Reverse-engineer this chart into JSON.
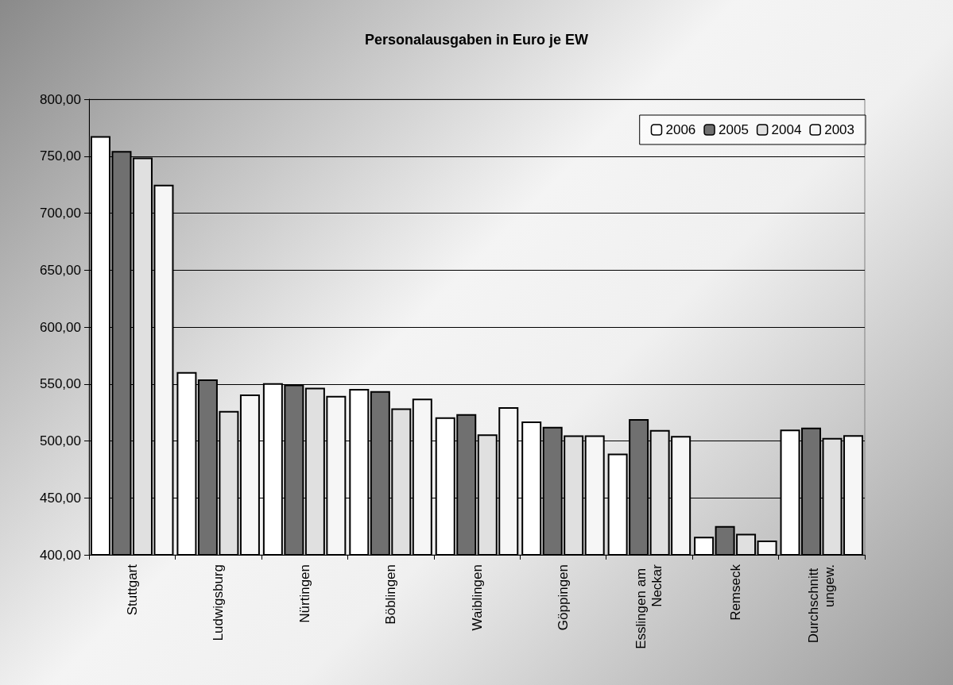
{
  "chart_data": {
    "type": "bar",
    "title": "Personalausgaben in Euro je EW",
    "categories": [
      "Stuttgart",
      "Ludwigsburg",
      "Nürtingen",
      "Böblingen",
      "Waiblingen",
      "Göppingen",
      "Esslingen am Neckar",
      "Remseck",
      "Durchschnitt ungew."
    ],
    "series": [
      {
        "name": "2006",
        "color": "#ffffff",
        "values": [
          767.6,
          560.5,
          550.7,
          545.6,
          520.8,
          517.0,
          488.8,
          415.9,
          510.0
        ]
      },
      {
        "name": "2005",
        "color": "#707070",
        "values": [
          754.5,
          554.0,
          549.5,
          543.7,
          523.6,
          512.4,
          519.2,
          425.2,
          511.7
        ]
      },
      {
        "name": "2004",
        "color": "#e0e0e0",
        "values": [
          748.7,
          526.3,
          546.7,
          528.5,
          505.8,
          504.9,
          509.6,
          418.5,
          502.6
        ]
      },
      {
        "name": "2003",
        "color": "#f6f6f6",
        "values": [
          725.0,
          540.8,
          539.5,
          537.1,
          529.7,
          504.9,
          504.4,
          412.6,
          505.1
        ]
      }
    ],
    "ylim": [
      400,
      800
    ],
    "yticks": [
      {
        "value": 400,
        "label": "400,00"
      },
      {
        "value": 450,
        "label": "450,00"
      },
      {
        "value": 500,
        "label": "500,00"
      },
      {
        "value": 550,
        "label": "550,00"
      },
      {
        "value": 600,
        "label": "600,00"
      },
      {
        "value": 650,
        "label": "650,00"
      },
      {
        "value": 700,
        "label": "700,00"
      },
      {
        "value": 750,
        "label": "750,00"
      },
      {
        "value": 800,
        "label": "800,00"
      }
    ],
    "grid": "y",
    "legend": "top right"
  }
}
